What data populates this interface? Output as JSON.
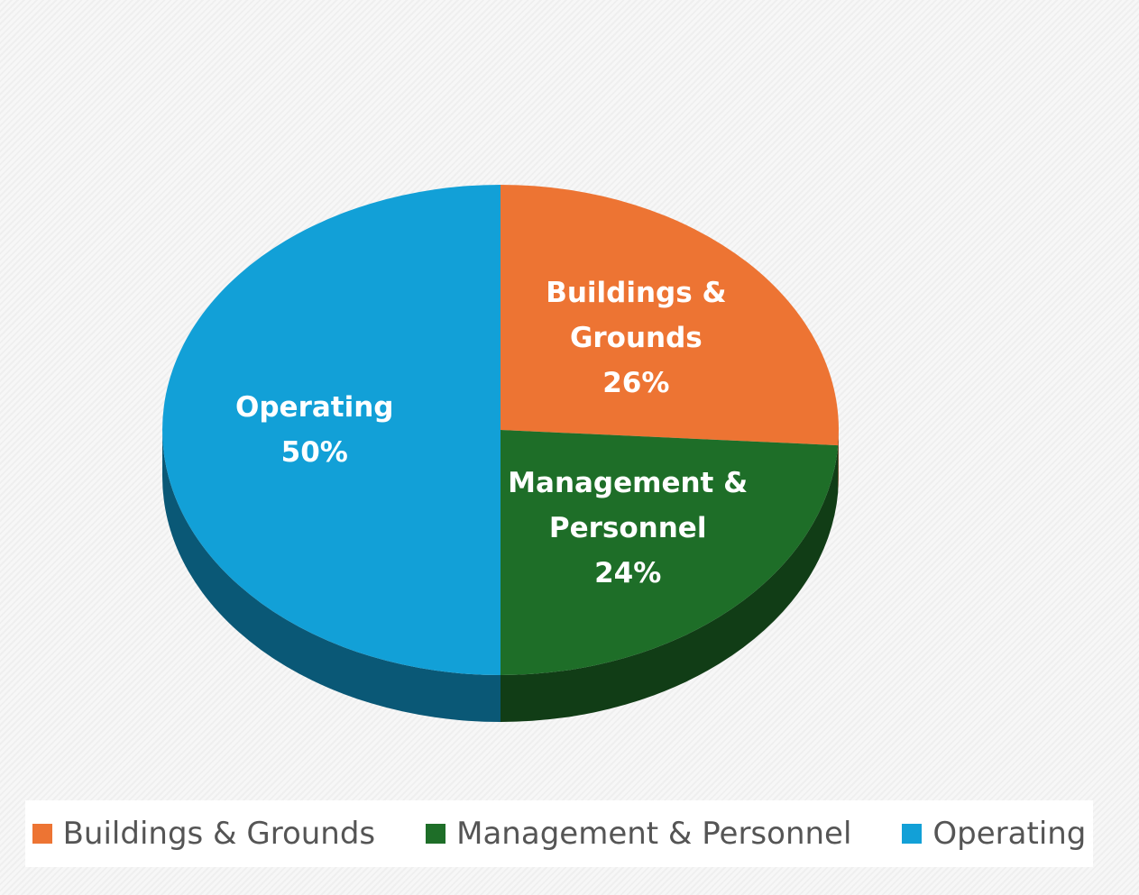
{
  "chart_data": {
    "type": "pie",
    "categories": [
      "Buildings & Grounds",
      "Management & Personnel",
      "Operating"
    ],
    "values": [
      26,
      24,
      50
    ],
    "value_labels": [
      "26%",
      "24%",
      "50%"
    ],
    "colors": [
      "#ed7433",
      "#1e6e28",
      "#12a0d7"
    ],
    "legend": "bottom"
  }
}
